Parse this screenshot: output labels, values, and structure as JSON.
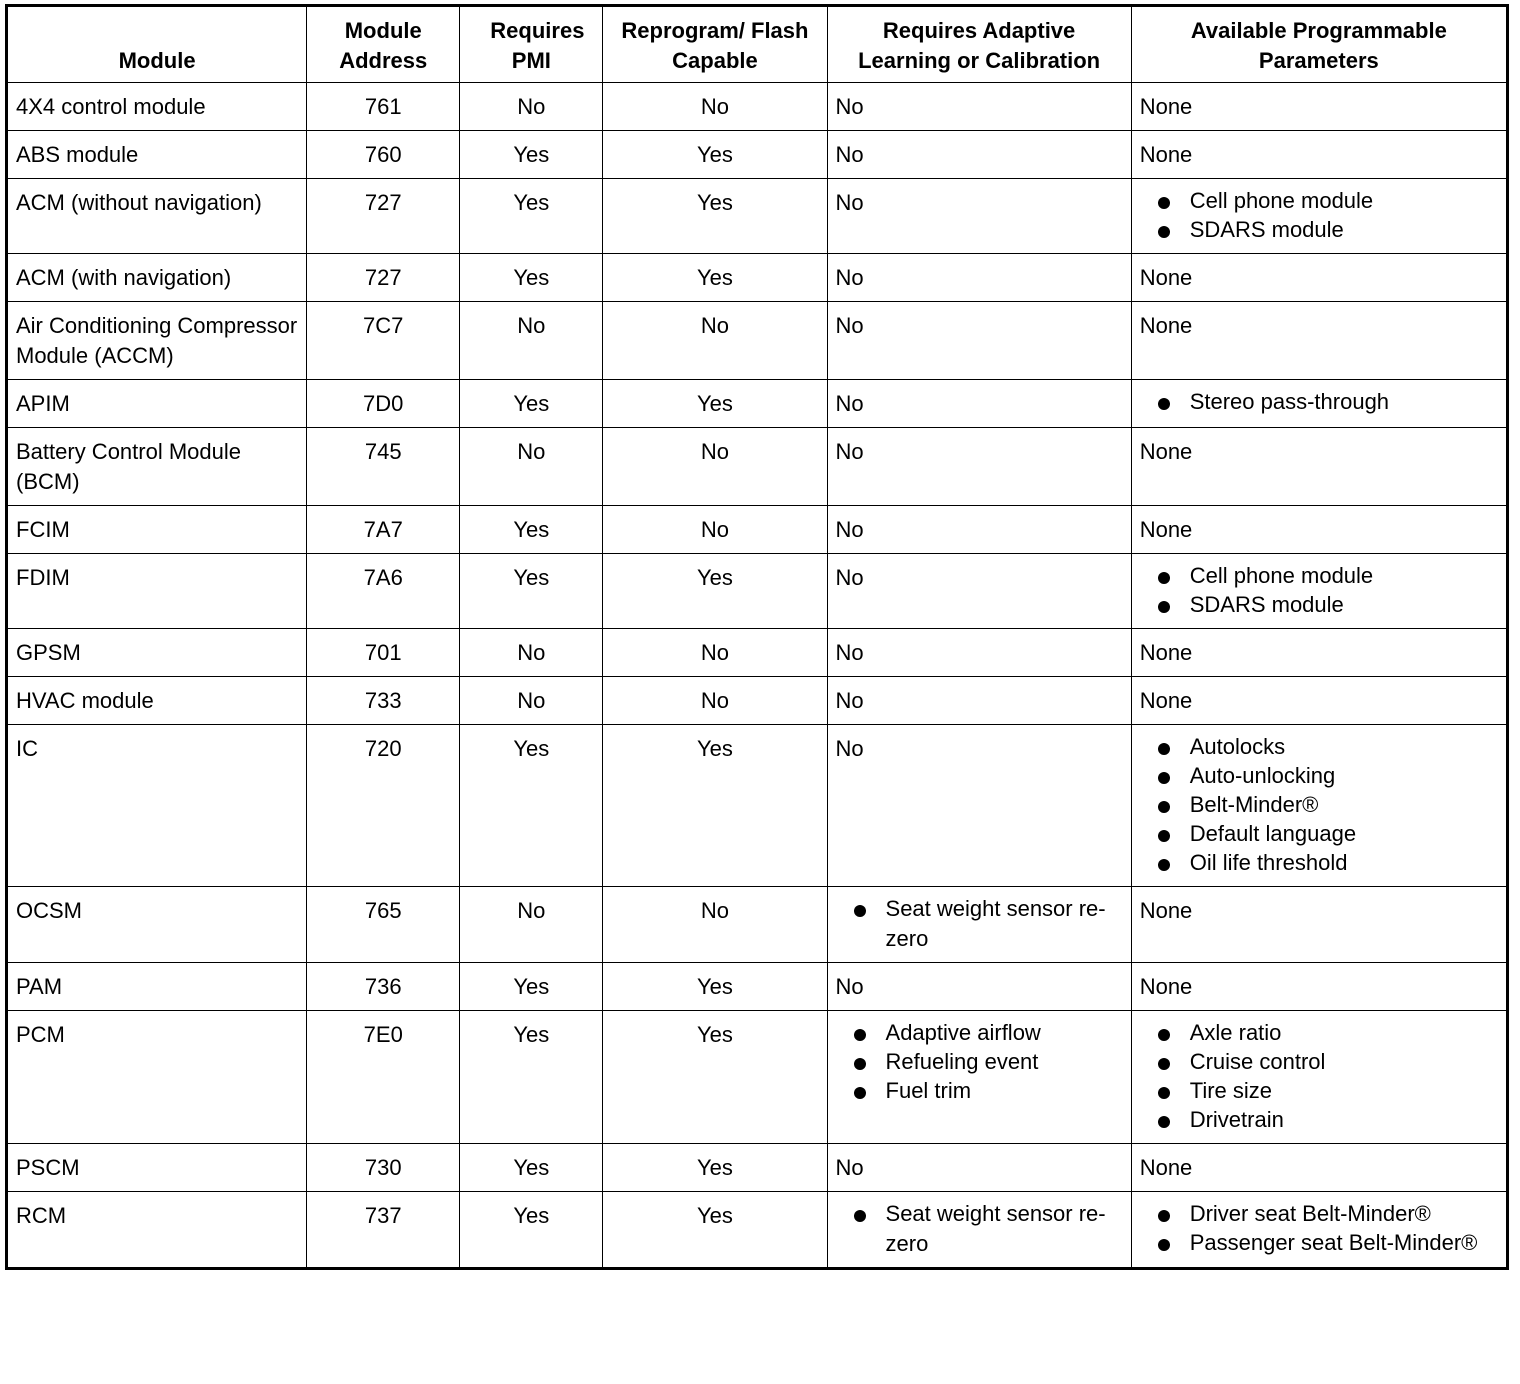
{
  "headers": [
    "Module",
    "Module Address",
    "Requires PMI",
    "Reprogram/ Flash Capable",
    "Requires Adaptive Learning or Calibration",
    "Available Programmable Parameters"
  ],
  "rows": [
    {
      "module": "4X4 control module",
      "address": "761",
      "pmi": "No",
      "flash": "No",
      "adaptive": "No",
      "params": "None"
    },
    {
      "module": "ABS module",
      "address": "760",
      "pmi": "Yes",
      "flash": "Yes",
      "adaptive": "No",
      "params": "None"
    },
    {
      "module": "ACM (without navigation)",
      "address": "727",
      "pmi": "Yes",
      "flash": "Yes",
      "adaptive": "No",
      "params": [
        "Cell phone module",
        "SDARS module"
      ]
    },
    {
      "module": "ACM (with navigation)",
      "address": "727",
      "pmi": "Yes",
      "flash": "Yes",
      "adaptive": "No",
      "params": "None"
    },
    {
      "module": "Air Conditioning Compressor Module (ACCM)",
      "address": "7C7",
      "pmi": "No",
      "flash": "No",
      "adaptive": "No",
      "params": "None"
    },
    {
      "module": "APIM",
      "address": "7D0",
      "pmi": "Yes",
      "flash": "Yes",
      "adaptive": "No",
      "params": [
        "Stereo pass-through"
      ]
    },
    {
      "module": "Battery Control Module (BCM)",
      "address": "745",
      "pmi": "No",
      "flash": "No",
      "adaptive": "No",
      "params": "None"
    },
    {
      "module": "FCIM",
      "address": "7A7",
      "pmi": "Yes",
      "flash": "No",
      "adaptive": "No",
      "params": "None"
    },
    {
      "module": "FDIM",
      "address": "7A6",
      "pmi": "Yes",
      "flash": "Yes",
      "adaptive": "No",
      "params": [
        "Cell phone module",
        "SDARS module"
      ]
    },
    {
      "module": "GPSM",
      "address": "701",
      "pmi": "No",
      "flash": "No",
      "adaptive": "No",
      "params": "None"
    },
    {
      "module": "HVAC module",
      "address": "733",
      "pmi": "No",
      "flash": "No",
      "adaptive": "No",
      "params": "None"
    },
    {
      "module": "IC",
      "address": "720",
      "pmi": "Yes",
      "flash": "Yes",
      "adaptive": "No",
      "params": [
        "Autolocks",
        "Auto-unlocking",
        "Belt-Minder®",
        "Default language",
        "Oil life threshold"
      ]
    },
    {
      "module": "OCSM",
      "address": "765",
      "pmi": "No",
      "flash": "No",
      "adaptive": [
        "Seat weight sensor re-zero"
      ],
      "params": "None"
    },
    {
      "module": "PAM",
      "address": "736",
      "pmi": "Yes",
      "flash": "Yes",
      "adaptive": "No",
      "params": "None"
    },
    {
      "module": "PCM",
      "address": "7E0",
      "pmi": "Yes",
      "flash": "Yes",
      "adaptive": [
        "Adaptive airflow",
        "Refueling event",
        "Fuel trim"
      ],
      "params": [
        "Axle ratio",
        "Cruise control",
        "Tire size",
        "Drivetrain"
      ]
    },
    {
      "module": "PSCM",
      "address": "730",
      "pmi": "Yes",
      "flash": "Yes",
      "adaptive": "No",
      "params": "None"
    },
    {
      "module": "RCM",
      "address": "737",
      "pmi": "Yes",
      "flash": "Yes",
      "adaptive": [
        "Seat weight sensor re-zero"
      ],
      "params": [
        "Driver seat Belt-Minder®",
        "Passenger seat Belt-Minder®"
      ]
    }
  ]
}
